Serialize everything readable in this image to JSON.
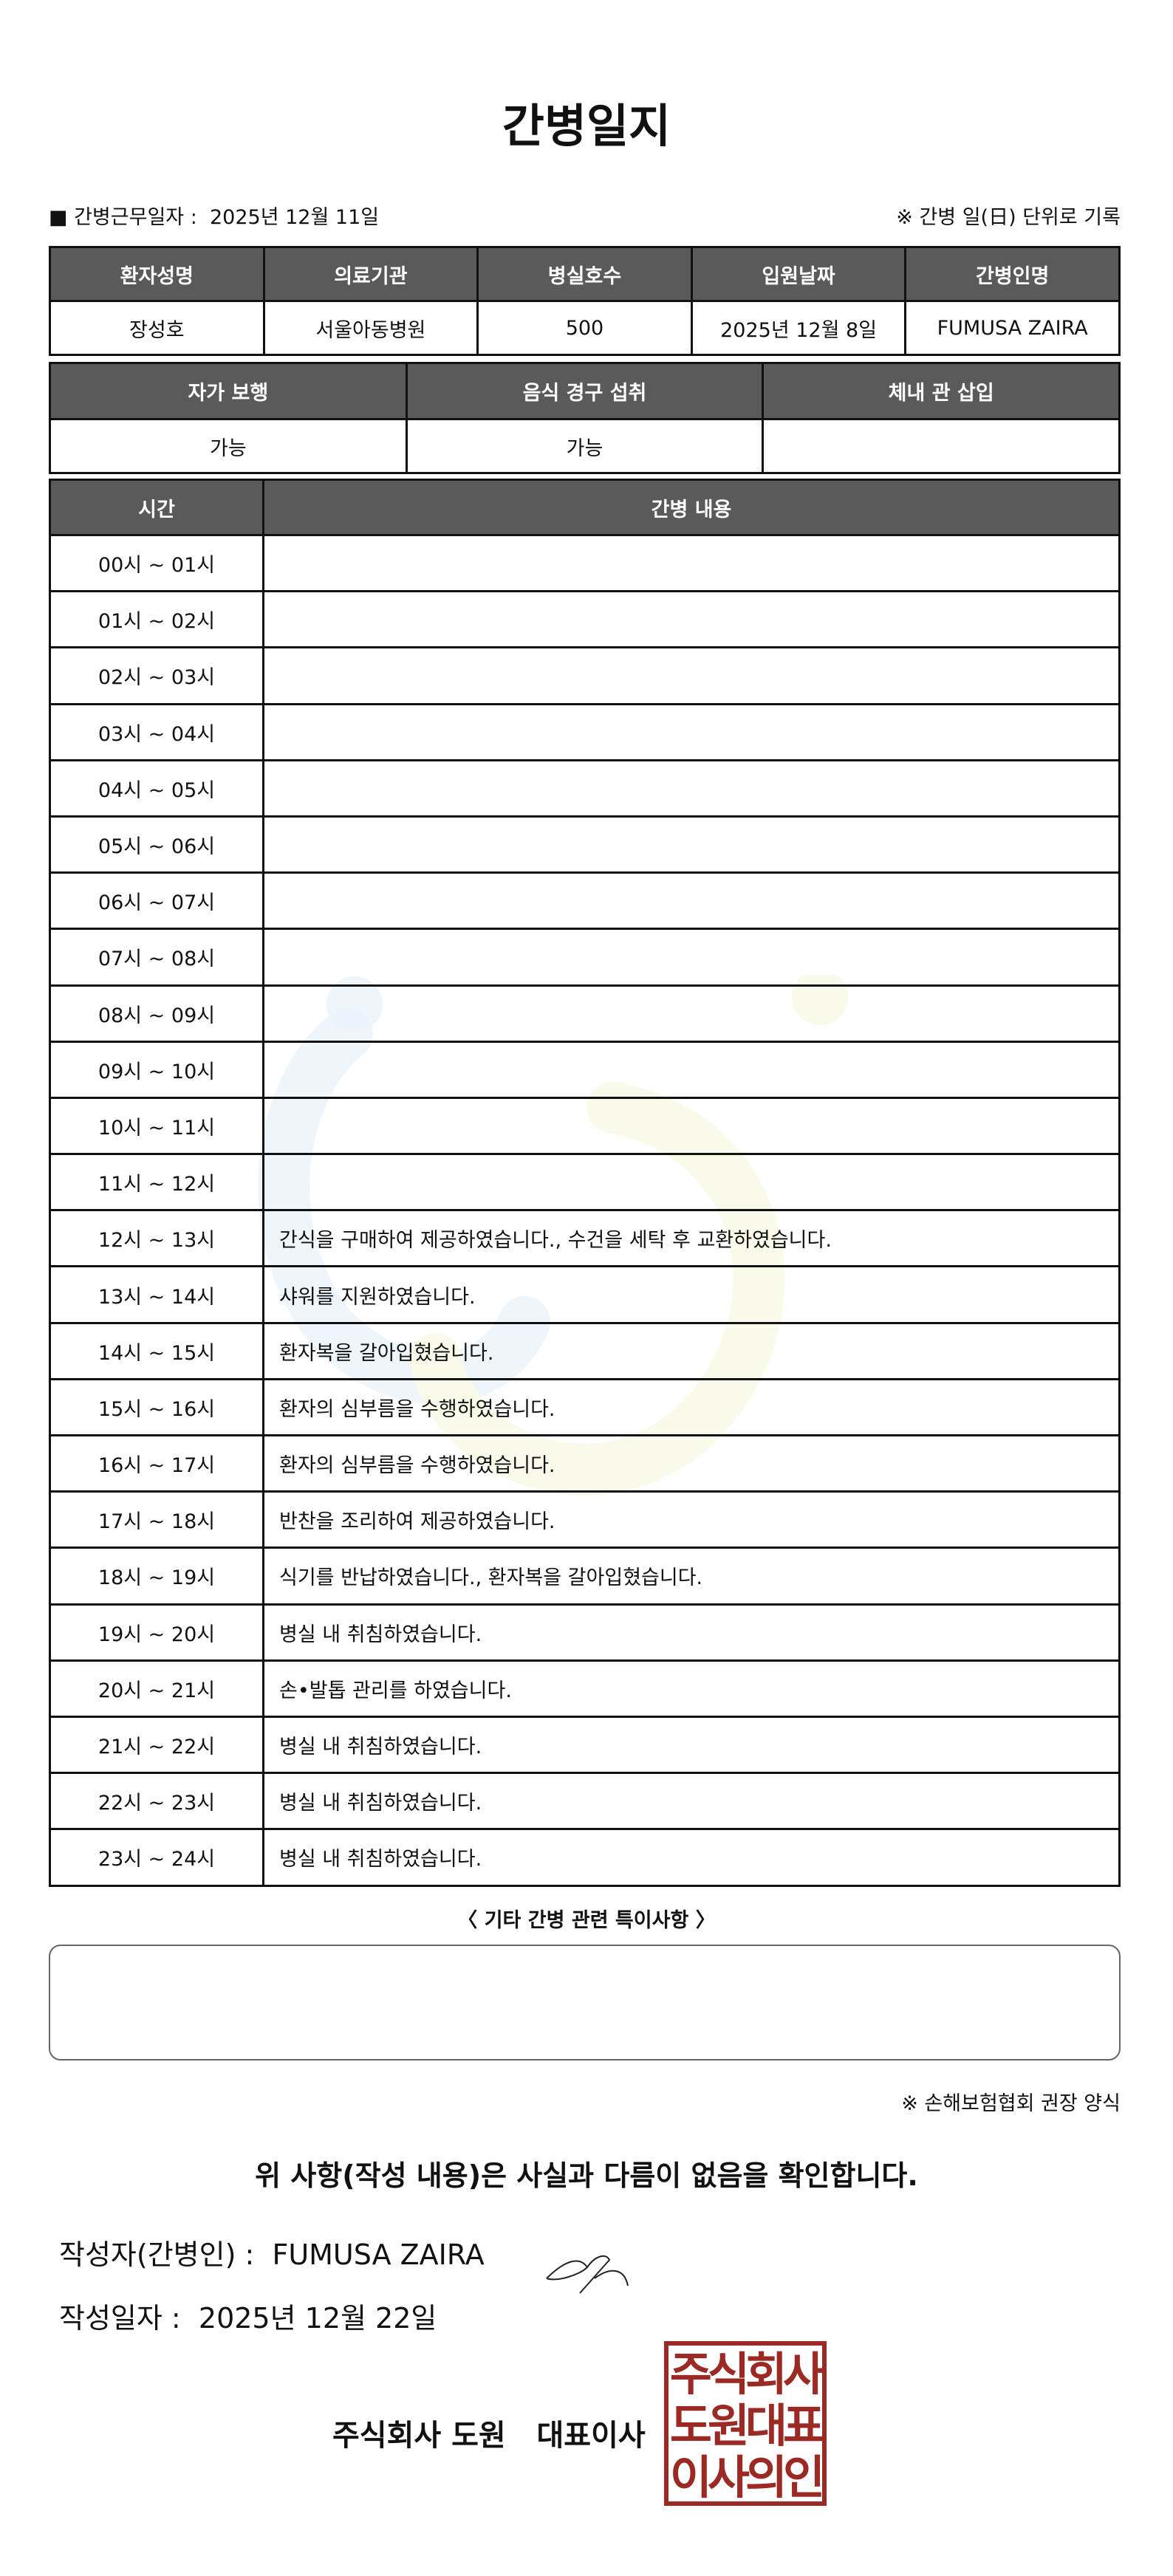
{
  "title": "간병일지",
  "work_date_label": "■ 간병근무일자 :",
  "work_date": "2025년 12월 11일",
  "unit_note": "※ 간병 일(日) 단위로 기록",
  "info": {
    "headers": [
      "환자성명",
      "의료기관",
      "병실호수",
      "입원날짜",
      "간병인명"
    ],
    "values": [
      "장성호",
      "서울아동병원",
      "500",
      "2025년 12월 8일",
      "FUMUSA ZAIRA"
    ]
  },
  "status": {
    "headers": [
      "자가 보행",
      "음식 경구 섭취",
      "체내 관 삽입"
    ],
    "values": [
      "가능",
      "가능",
      ""
    ]
  },
  "log": {
    "headers": [
      "시간",
      "간병 내용"
    ],
    "rows": [
      {
        "time": "00시 ~ 01시",
        "content": ""
      },
      {
        "time": "01시 ~ 02시",
        "content": ""
      },
      {
        "time": "02시 ~ 03시",
        "content": ""
      },
      {
        "time": "03시 ~ 04시",
        "content": ""
      },
      {
        "time": "04시 ~ 05시",
        "content": ""
      },
      {
        "time": "05시 ~ 06시",
        "content": ""
      },
      {
        "time": "06시 ~ 07시",
        "content": ""
      },
      {
        "time": "07시 ~ 08시",
        "content": ""
      },
      {
        "time": "08시 ~ 09시",
        "content": ""
      },
      {
        "time": "09시 ~ 10시",
        "content": ""
      },
      {
        "time": "10시 ~ 11시",
        "content": ""
      },
      {
        "time": "11시 ~ 12시",
        "content": ""
      },
      {
        "time": "12시 ~ 13시",
        "content": "간식을 구매하여 제공하였습니다., 수건을 세탁 후 교환하였습니다."
      },
      {
        "time": "13시 ~ 14시",
        "content": "샤워를 지원하였습니다."
      },
      {
        "time": "14시 ~ 15시",
        "content": "환자복을 갈아입혔습니다."
      },
      {
        "time": "15시 ~ 16시",
        "content": "환자의 심부름을 수행하였습니다."
      },
      {
        "time": "16시 ~ 17시",
        "content": "환자의 심부름을 수행하였습니다."
      },
      {
        "time": "17시 ~ 18시",
        "content": "반찬을 조리하여 제공하였습니다."
      },
      {
        "time": "18시 ~ 19시",
        "content": "식기를 반납하였습니다., 환자복을 갈아입혔습니다."
      },
      {
        "time": "19시 ~ 20시",
        "content": "병실 내 취침하였습니다."
      },
      {
        "time": "20시 ~ 21시",
        "content": "손•발톱 관리를 하였습니다."
      },
      {
        "time": "21시 ~ 22시",
        "content": "병실 내 취침하였습니다."
      },
      {
        "time": "22시 ~ 23시",
        "content": "병실 내 취침하였습니다."
      },
      {
        "time": "23시 ~ 24시",
        "content": "병실 내 취침하였습니다."
      }
    ]
  },
  "notes_title": "〈 기타 간병 관련 특이사항 〉",
  "notes": "",
  "assoc_note": "※ 손해보험협회 권장 양식",
  "confirm": "위 사항(작성 내용)은 사실과 다름이 없음을 확인합니다.",
  "writer_label": "작성자(간병인) :",
  "writer": "FUMUSA ZAIRA",
  "date_label": "작성일자 :",
  "date": "2025년 12월 22일",
  "company": "주식회사 도원   대표이사",
  "stamp_text": "주식회사 도원대표 이사의인",
  "colors": {
    "header_bg": "#5a5a5a",
    "stamp": "#9b2a25",
    "watermark_blue": "#bcdcef",
    "watermark_yellow": "#f3f3c8"
  }
}
